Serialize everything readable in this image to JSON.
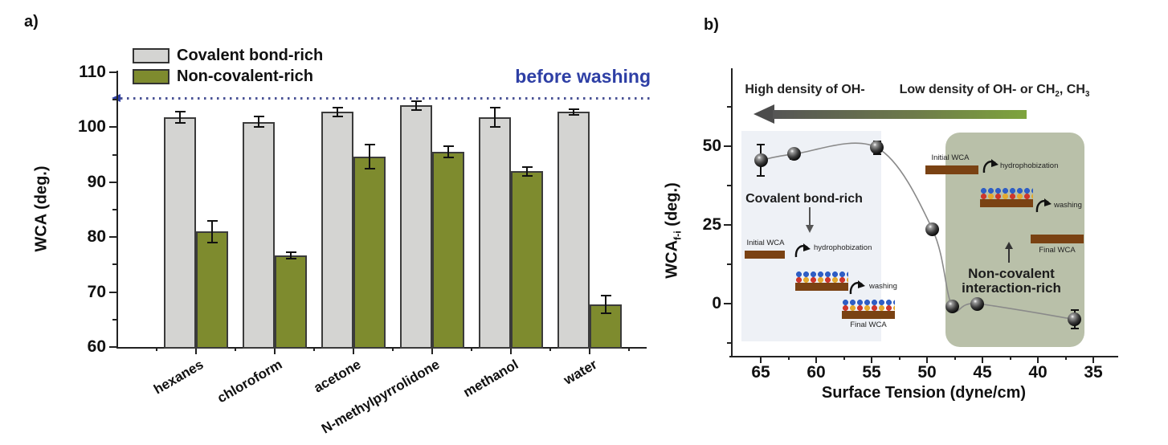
{
  "figure": {
    "panel_a_label": "a)",
    "panel_b_label": "b)"
  },
  "chart_data": [
    {
      "panel": "a",
      "type": "bar",
      "ylabel": "WCA (deg.)",
      "ylim": [
        60,
        110
      ],
      "yticks": [
        60,
        70,
        80,
        90,
        100,
        110
      ],
      "grid": false,
      "legend_position": "top-left",
      "categories": [
        "hexanes",
        "chloroform",
        "acetone",
        "N-methylpyrrolidone",
        "methanol",
        "water"
      ],
      "series": [
        {
          "name": "Covalent bond-rich",
          "color": "#d4d4d2",
          "values": [
            101.8,
            101.0,
            102.8,
            104.0,
            101.8,
            102.8
          ],
          "errors": [
            1.0,
            1.0,
            0.8,
            0.8,
            1.7,
            0.5
          ]
        },
        {
          "name": "Non-covalent-rich",
          "color": "#7e8b2e",
          "values": [
            81.0,
            76.7,
            94.7,
            95.5,
            92.0,
            67.7
          ],
          "errors": [
            2.0,
            0.6,
            2.2,
            1.0,
            0.8,
            1.6
          ]
        }
      ],
      "reference_line": {
        "value": 105,
        "label": "before washing",
        "color": "#2e3fa5",
        "style": "dotted"
      }
    },
    {
      "panel": "b",
      "type": "scatter",
      "xlabel": "Surface Tension (dyne/cm)",
      "ylabel_parts": [
        "WCA",
        "f-i",
        " (deg.)"
      ],
      "xlim": [
        67.5,
        33
      ],
      "x_reversed": true,
      "ylim": [
        -17,
        74
      ],
      "xticks": [
        65,
        60,
        55,
        50,
        45,
        40,
        35
      ],
      "yticks": [
        0,
        25,
        50
      ],
      "trend_line": true,
      "points": [
        {
          "x": 65.0,
          "y": 45.5,
          "err": 5.0
        },
        {
          "x": 62.0,
          "y": 47.5,
          "err": 1.5
        },
        {
          "x": 54.5,
          "y": 49.5,
          "err": 2.0
        },
        {
          "x": 49.5,
          "y": 23.5,
          "err": 0
        },
        {
          "x": 47.7,
          "y": -1.0,
          "err": 0
        },
        {
          "x": 45.5,
          "y": 0.0,
          "err": 0
        },
        {
          "x": 36.7,
          "y": -5.0,
          "err": 3.0
        }
      ],
      "annotations": {
        "gradient_arrow": {
          "direction": "left",
          "left_label": "High density of OH-",
          "right_label_parts": [
            "Low density of OH- or CH",
            "2",
            ", CH",
            "3"
          ],
          "colors": [
            "#4c4c4c",
            "#7ea43d"
          ]
        },
        "region_covalent": {
          "title": "Covalent bond-rich",
          "initial_wca": "Initial WCA",
          "hydrophobization": "hydrophobization",
          "washing": "washing",
          "final_wca": "Final WCA"
        },
        "region_noncovalent": {
          "title_line1": "Non-covalent",
          "title_line2": "interaction-rich",
          "initial_wca": "Initial WCA",
          "hydrophobization": "hydrophobization",
          "washing": "washing",
          "final_wca": "Final WCA"
        }
      }
    }
  ]
}
